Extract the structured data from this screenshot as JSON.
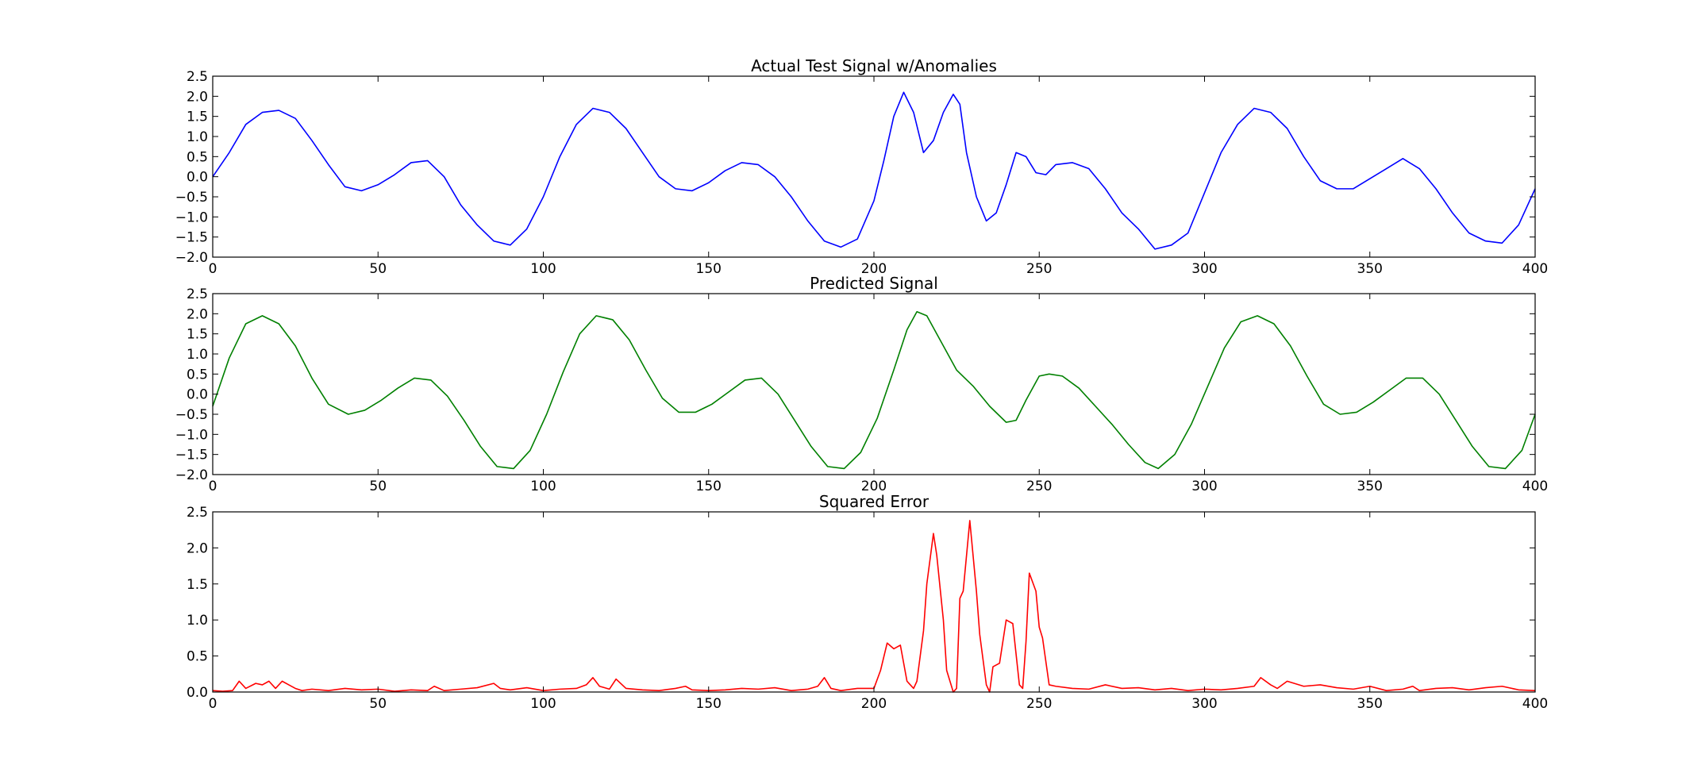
{
  "chart_data": [
    {
      "type": "line",
      "title": "Actual Test Signal w/Anomalies",
      "color": "#0000ff",
      "xlim": [
        0,
        400
      ],
      "ylim": [
        -2.0,
        2.5
      ],
      "xticks": [
        "0",
        "50",
        "100",
        "150",
        "200",
        "250",
        "300",
        "350",
        "400"
      ],
      "yticks": [
        "2.5",
        "2.0",
        "1.5",
        "1.0",
        "0.5",
        "0.0",
        "−0.5",
        "−1.0",
        "−1.5",
        "−2.0"
      ],
      "grid": false,
      "series": [
        {
          "x": [
            0,
            5,
            10,
            15,
            20,
            25,
            30,
            35,
            40,
            45,
            50,
            55,
            60,
            65,
            70,
            75,
            80,
            85,
            90,
            95,
            100,
            105,
            110,
            115,
            120,
            125,
            130,
            135,
            140,
            145,
            150,
            155,
            160,
            165,
            170,
            175,
            180,
            185,
            190,
            195,
            200,
            203,
            206,
            209,
            212,
            215,
            218,
            221,
            224,
            226,
            228,
            231,
            234,
            237,
            240,
            243,
            246,
            249,
            252,
            255,
            260,
            265,
            270,
            275,
            280,
            285,
            290,
            295,
            300,
            305,
            310,
            315,
            320,
            325,
            330,
            335,
            340,
            345,
            350,
            355,
            360,
            365,
            370,
            375,
            380,
            385,
            390,
            395,
            400
          ],
          "y": [
            0.0,
            0.6,
            1.3,
            1.6,
            1.65,
            1.45,
            0.9,
            0.3,
            -0.25,
            -0.35,
            -0.2,
            0.05,
            0.35,
            0.4,
            0.0,
            -0.7,
            -1.2,
            -1.6,
            -1.7,
            -1.3,
            -0.5,
            0.5,
            1.3,
            1.7,
            1.6,
            1.2,
            0.6,
            0.0,
            -0.3,
            -0.35,
            -0.15,
            0.15,
            0.35,
            0.3,
            0.0,
            -0.5,
            -1.1,
            -1.6,
            -1.75,
            -1.55,
            -0.6,
            0.4,
            1.5,
            2.1,
            1.6,
            0.6,
            0.9,
            1.6,
            2.05,
            1.8,
            0.6,
            -0.5,
            -1.1,
            -0.9,
            -0.2,
            0.6,
            0.5,
            0.1,
            0.05,
            0.3,
            0.35,
            0.2,
            -0.3,
            -0.9,
            -1.3,
            -1.8,
            -1.7,
            -1.4,
            -0.4,
            0.6,
            1.3,
            1.7,
            1.6,
            1.2,
            0.5,
            -0.1,
            -0.3,
            -0.3,
            -0.05,
            0.2,
            0.45,
            0.2,
            -0.3,
            -0.9,
            -1.4,
            -1.6,
            -1.65,
            -1.2,
            -0.3
          ]
        }
      ]
    },
    {
      "type": "line",
      "title": "Predicted Signal",
      "color": "#008000",
      "xlim": [
        0,
        400
      ],
      "ylim": [
        -2.0,
        2.5
      ],
      "xticks": [
        "0",
        "50",
        "100",
        "150",
        "200",
        "250",
        "300",
        "350",
        "400"
      ],
      "yticks": [
        "2.5",
        "2.0",
        "1.5",
        "1.0",
        "0.5",
        "0.0",
        "−0.5",
        "−1.0",
        "−1.5",
        "−2.0"
      ],
      "grid": false,
      "series": [
        {
          "x": [
            0,
            5,
            10,
            15,
            20,
            25,
            30,
            35,
            41,
            46,
            51,
            56,
            61,
            66,
            71,
            76,
            81,
            86,
            91,
            96,
            101,
            106,
            111,
            116,
            121,
            126,
            131,
            136,
            141,
            146,
            151,
            156,
            161,
            166,
            171,
            176,
            181,
            186,
            191,
            196,
            201,
            206,
            210,
            213,
            216,
            220,
            225,
            230,
            235,
            240,
            243,
            246,
            250,
            253,
            257,
            262,
            267,
            272,
            277,
            282,
            286,
            291,
            296,
            301,
            306,
            311,
            316,
            321,
            326,
            331,
            336,
            341,
            346,
            351,
            356,
            361,
            366,
            371,
            376,
            381,
            386,
            391,
            396,
            400
          ],
          "y": [
            -0.3,
            0.9,
            1.75,
            1.95,
            1.75,
            1.2,
            0.4,
            -0.25,
            -0.5,
            -0.4,
            -0.15,
            0.15,
            0.4,
            0.35,
            -0.05,
            -0.65,
            -1.3,
            -1.8,
            -1.85,
            -1.4,
            -0.5,
            0.55,
            1.5,
            1.95,
            1.85,
            1.35,
            0.6,
            -0.1,
            -0.45,
            -0.45,
            -0.25,
            0.05,
            0.35,
            0.4,
            0.0,
            -0.65,
            -1.3,
            -1.8,
            -1.85,
            -1.45,
            -0.6,
            0.6,
            1.6,
            2.05,
            1.95,
            1.35,
            0.6,
            0.2,
            -0.3,
            -0.7,
            -0.65,
            -0.15,
            0.45,
            0.5,
            0.45,
            0.15,
            -0.3,
            -0.75,
            -1.25,
            -1.7,
            -1.85,
            -1.5,
            -0.75,
            0.2,
            1.15,
            1.8,
            1.95,
            1.75,
            1.2,
            0.45,
            -0.25,
            -0.5,
            -0.45,
            -0.2,
            0.1,
            0.4,
            0.4,
            0.0,
            -0.65,
            -1.3,
            -1.8,
            -1.85,
            -1.4,
            -0.5
          ]
        }
      ]
    },
    {
      "type": "line",
      "title": "Squared Error",
      "color": "#ff0000",
      "xlim": [
        0,
        400
      ],
      "ylim": [
        0.0,
        2.5
      ],
      "xticks": [
        "0",
        "50",
        "100",
        "150",
        "200",
        "250",
        "300",
        "350",
        "400"
      ],
      "yticks": [
        "2.5",
        "2.0",
        "1.5",
        "1.0",
        "0.5",
        "0.0"
      ],
      "grid": false,
      "series": [
        {
          "x": [
            0,
            3,
            6,
            8,
            10,
            13,
            15,
            17,
            19,
            21,
            23,
            25,
            27,
            30,
            35,
            40,
            45,
            50,
            55,
            60,
            65,
            67,
            70,
            75,
            80,
            85,
            87,
            90,
            95,
            100,
            105,
            110,
            113,
            115,
            117,
            120,
            122,
            125,
            130,
            135,
            140,
            143,
            145,
            150,
            155,
            160,
            165,
            170,
            175,
            180,
            183,
            185,
            187,
            190,
            195,
            200,
            202,
            204,
            206,
            208,
            210,
            212,
            213,
            215,
            216,
            218,
            219,
            221,
            222,
            224,
            225,
            226,
            227,
            229,
            231,
            232,
            234,
            235,
            236,
            238,
            240,
            242,
            244,
            245,
            246,
            247,
            249,
            250,
            251,
            253,
            255,
            260,
            265,
            270,
            275,
            280,
            285,
            290,
            295,
            300,
            305,
            310,
            315,
            317,
            320,
            322,
            325,
            330,
            335,
            340,
            345,
            350,
            355,
            360,
            363,
            365,
            370,
            375,
            380,
            385,
            390,
            395,
            400
          ],
          "y": [
            0.02,
            0.01,
            0.02,
            0.15,
            0.05,
            0.12,
            0.1,
            0.15,
            0.05,
            0.15,
            0.1,
            0.05,
            0.02,
            0.04,
            0.02,
            0.05,
            0.03,
            0.04,
            0.01,
            0.03,
            0.02,
            0.08,
            0.02,
            0.04,
            0.06,
            0.12,
            0.05,
            0.03,
            0.06,
            0.02,
            0.04,
            0.05,
            0.1,
            0.2,
            0.08,
            0.04,
            0.18,
            0.05,
            0.03,
            0.02,
            0.05,
            0.08,
            0.03,
            0.02,
            0.03,
            0.05,
            0.04,
            0.06,
            0.02,
            0.04,
            0.08,
            0.2,
            0.05,
            0.02,
            0.05,
            0.05,
            0.3,
            0.68,
            0.6,
            0.65,
            0.15,
            0.05,
            0.15,
            0.85,
            1.5,
            2.2,
            1.9,
            1.0,
            0.3,
            0.0,
            0.05,
            1.3,
            1.4,
            2.38,
            1.4,
            0.8,
            0.1,
            0.0,
            0.35,
            0.4,
            1.0,
            0.95,
            0.1,
            0.05,
            0.7,
            1.65,
            1.4,
            0.9,
            0.75,
            0.1,
            0.08,
            0.05,
            0.04,
            0.1,
            0.05,
            0.06,
            0.03,
            0.05,
            0.02,
            0.04,
            0.03,
            0.05,
            0.08,
            0.2,
            0.1,
            0.05,
            0.15,
            0.08,
            0.1,
            0.06,
            0.04,
            0.08,
            0.02,
            0.04,
            0.08,
            0.02,
            0.05,
            0.06,
            0.03,
            0.06,
            0.08,
            0.03,
            0.02
          ]
        }
      ]
    }
  ]
}
